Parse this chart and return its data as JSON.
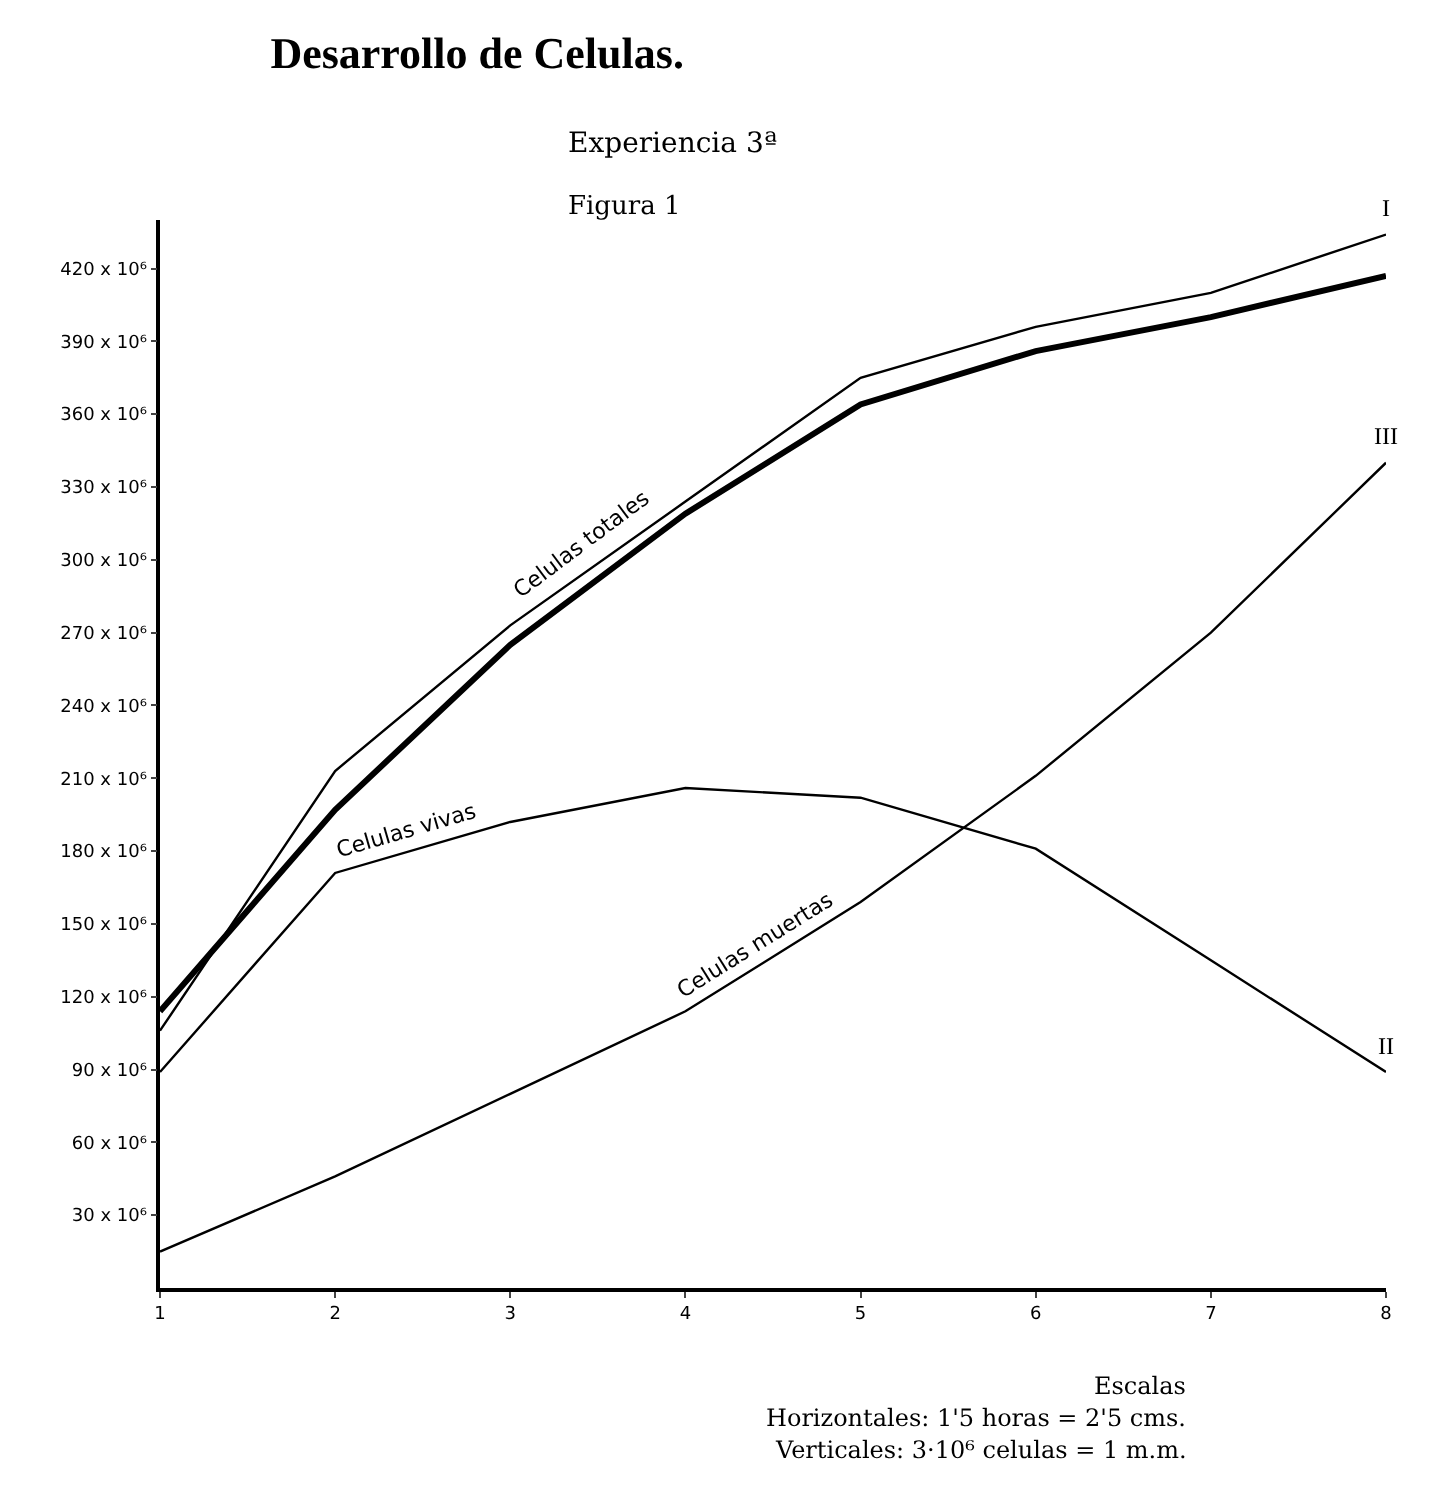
{
  "chart_data": {
    "type": "line",
    "title": "Desarrollo de Celulas.",
    "subtitle": "Experiencia 3ª",
    "x": [
      1,
      2,
      3,
      4,
      5,
      6,
      7,
      8
    ],
    "series": [
      {
        "name": "Celulas totales",
        "color": "#000000",
        "values": [
          114000000,
          197000000,
          265000000,
          319000000,
          364000000,
          386000000,
          400000000,
          417000000
        ]
      },
      {
        "color": "#000000",
        "values": [
          106000000,
          213000000,
          273000000,
          324000000,
          375000000,
          396000000,
          410000000,
          434000000
        ]
      },
      {
        "name": "Celulas vivas",
        "color": "#000000",
        "values": [
          89000000,
          171000000,
          192000000,
          206000000,
          202000000,
          181000000,
          135000000,
          89000000
        ]
      },
      {
        "name": "Celulas muertas",
        "color": "#000000",
        "values": [
          15000000,
          46000000,
          80000000,
          114000000,
          159000000,
          211000000,
          270000000,
          340000000
        ]
      }
    ],
    "xlim": [
      1,
      8
    ],
    "xticks": [
      1,
      2,
      3,
      4,
      5,
      6,
      7,
      8
    ],
    "ylim": [
      0,
      440000000
    ],
    "yticks": [
      {
        "value": 30000000,
        "label": "30 x 10⁶"
      },
      {
        "value": 60000000,
        "label": "60 x 10⁶"
      },
      {
        "value": 90000000,
        "label": "90 x 10⁶"
      },
      {
        "value": 120000000,
        "label": "120 x 10⁶"
      },
      {
        "value": 150000000,
        "label": "150 x 10⁶"
      },
      {
        "value": 180000000,
        "label": "180 x 10⁶"
      },
      {
        "value": 210000000,
        "label": "210 x 10⁶"
      },
      {
        "value": 240000000,
        "label": "240 x 10⁶"
      },
      {
        "value": 270000000,
        "label": "270 x 10⁶"
      },
      {
        "value": 300000000,
        "label": "300 x 10⁶"
      },
      {
        "value": 330000000,
        "label": "330 x 10⁶"
      },
      {
        "value": 360000000,
        "label": "360 x 10⁶"
      },
      {
        "value": 390000000,
        "label": "390 x 10⁶"
      },
      {
        "value": 420000000,
        "label": "420 x 10⁶"
      }
    ],
    "grid": false,
    "legend": false,
    "marker": "none",
    "line_style": "solid",
    "annotations": [
      "Figura 1",
      "I",
      "II",
      "III",
      "Escalas",
      "Horizontales: 1'5 horas = 2'5 cms.",
      "Verticales: 3·10⁶ celulas = 1 m.m."
    ]
  }
}
